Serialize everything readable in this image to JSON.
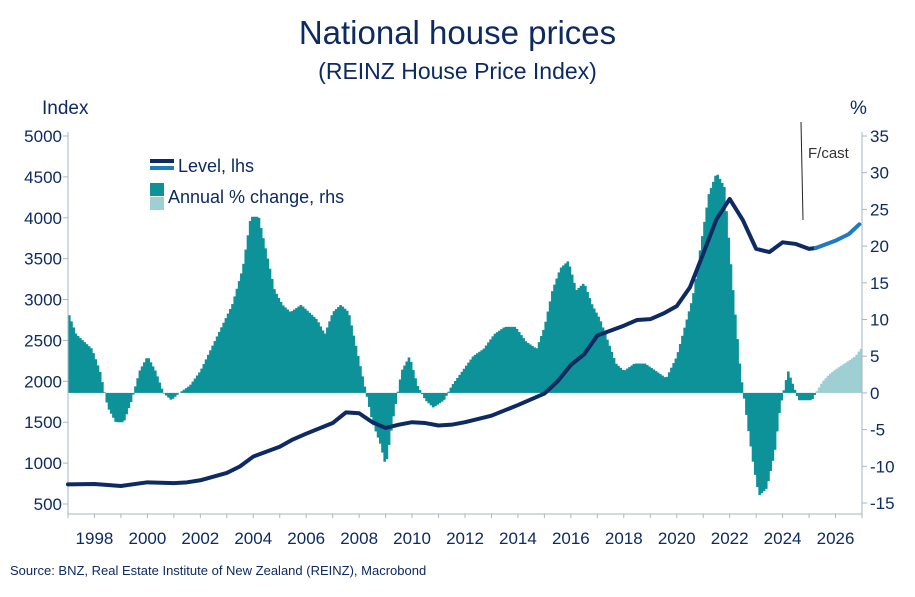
{
  "chart_data": {
    "type": "bar+line",
    "title": "National house prices",
    "subtitle": "(REINZ House Price Index)",
    "ylabel_left": "Index",
    "ylabel_right": "%",
    "ylim_left": [
      500,
      5000
    ],
    "yticks_left": [
      500,
      1000,
      1500,
      2000,
      2500,
      3000,
      3500,
      4000,
      4500,
      5000
    ],
    "ylim_right": [
      -15,
      35
    ],
    "yticks_right": [
      -15,
      -10,
      -5,
      0,
      5,
      10,
      15,
      20,
      25,
      30,
      35
    ],
    "xlim": [
      1997.0,
      2027.0
    ],
    "xticks": [
      1998,
      2000,
      2002,
      2004,
      2006,
      2008,
      2010,
      2012,
      2014,
      2016,
      2018,
      2020,
      2022,
      2024,
      2026
    ],
    "forecast_start": 2025.25,
    "forecast_label": "F/cast",
    "source": "Source: BNZ, Real Estate Institute of New Zealand (REINZ), Macrobond",
    "grid": false,
    "legend": {
      "placement": "top-left",
      "items": [
        {
          "label": "Level, lhs",
          "colors": [
            "#0d2a63",
            "#1f7bc0"
          ],
          "kind": "line"
        },
        {
          "label": "Annual % change, rhs",
          "colors": [
            "#0e9299",
            "#9ecfd3"
          ],
          "kind": "bar"
        }
      ]
    },
    "colors": {
      "level_actual": "#0d2a63",
      "level_forecast": "#1f7bc0",
      "change_actual": "#0e9299",
      "change_forecast": "#9ecfd3",
      "text": "#0d2a63",
      "axis": "#aab4c8"
    },
    "series": [
      {
        "name": "Level, lhs",
        "axis": "left",
        "points": [
          [
            1997.0,
            740
          ],
          [
            1998.0,
            745
          ],
          [
            1999.0,
            720
          ],
          [
            2000.0,
            765
          ],
          [
            2001.0,
            755
          ],
          [
            2001.5,
            765
          ],
          [
            2002.0,
            790
          ],
          [
            2003.0,
            880
          ],
          [
            2003.5,
            960
          ],
          [
            2004.0,
            1080
          ],
          [
            2005.0,
            1200
          ],
          [
            2005.5,
            1290
          ],
          [
            2006.0,
            1360
          ],
          [
            2007.0,
            1490
          ],
          [
            2007.5,
            1620
          ],
          [
            2008.0,
            1610
          ],
          [
            2008.5,
            1500
          ],
          [
            2009.0,
            1430
          ],
          [
            2009.5,
            1470
          ],
          [
            2010.0,
            1500
          ],
          [
            2010.5,
            1490
          ],
          [
            2011.0,
            1460
          ],
          [
            2011.5,
            1470
          ],
          [
            2012.0,
            1500
          ],
          [
            2013.0,
            1580
          ],
          [
            2014.0,
            1710
          ],
          [
            2015.0,
            1850
          ],
          [
            2015.5,
            2000
          ],
          [
            2016.0,
            2200
          ],
          [
            2016.5,
            2330
          ],
          [
            2017.0,
            2560
          ],
          [
            2017.5,
            2620
          ],
          [
            2018.0,
            2680
          ],
          [
            2018.5,
            2750
          ],
          [
            2019.0,
            2760
          ],
          [
            2019.5,
            2830
          ],
          [
            2020.0,
            2920
          ],
          [
            2020.5,
            3150
          ],
          [
            2021.0,
            3560
          ],
          [
            2021.5,
            3980
          ],
          [
            2022.0,
            4230
          ],
          [
            2022.5,
            3970
          ],
          [
            2023.0,
            3620
          ],
          [
            2023.5,
            3580
          ],
          [
            2024.0,
            3700
          ],
          [
            2024.5,
            3680
          ],
          [
            2025.0,
            3620
          ],
          [
            2025.25,
            3630
          ]
        ]
      },
      {
        "name": "Level, lhs (forecast)",
        "axis": "left",
        "points": [
          [
            2025.25,
            3630
          ],
          [
            2025.5,
            3660
          ],
          [
            2026.0,
            3720
          ],
          [
            2026.5,
            3800
          ],
          [
            2026.9,
            3920
          ]
        ]
      },
      {
        "name": "Annual % change, rhs",
        "axis": "right",
        "type": "bar",
        "points": [
          [
            1997.0,
            11
          ],
          [
            1997.3,
            8
          ],
          [
            1997.6,
            7
          ],
          [
            1997.9,
            6
          ],
          [
            1998.2,
            3
          ],
          [
            1998.5,
            -2
          ],
          [
            1998.8,
            -4
          ],
          [
            1999.1,
            -4
          ],
          [
            1999.4,
            -1
          ],
          [
            1999.7,
            3
          ],
          [
            2000.0,
            5
          ],
          [
            2000.3,
            3
          ],
          [
            2000.6,
            0
          ],
          [
            2000.9,
            -1
          ],
          [
            2001.2,
            0
          ],
          [
            2001.6,
            1
          ],
          [
            2002.0,
            3
          ],
          [
            2002.4,
            6
          ],
          [
            2002.8,
            9
          ],
          [
            2003.2,
            12
          ],
          [
            2003.6,
            17
          ],
          [
            2003.9,
            24
          ],
          [
            2004.2,
            24
          ],
          [
            2004.5,
            19
          ],
          [
            2004.8,
            14
          ],
          [
            2005.1,
            12
          ],
          [
            2005.4,
            11
          ],
          [
            2005.8,
            12
          ],
          [
            2006.1,
            11
          ],
          [
            2006.4,
            10
          ],
          [
            2006.7,
            8
          ],
          [
            2007.0,
            11
          ],
          [
            2007.3,
            12
          ],
          [
            2007.6,
            11
          ],
          [
            2007.9,
            6
          ],
          [
            2008.2,
            1
          ],
          [
            2008.5,
            -4
          ],
          [
            2008.8,
            -7
          ],
          [
            2009.0,
            -10
          ],
          [
            2009.3,
            -3
          ],
          [
            2009.6,
            3
          ],
          [
            2009.9,
            5
          ],
          [
            2010.2,
            1
          ],
          [
            2010.5,
            -1
          ],
          [
            2010.8,
            -2
          ],
          [
            2011.2,
            -1
          ],
          [
            2011.5,
            1
          ],
          [
            2011.9,
            3
          ],
          [
            2012.3,
            5
          ],
          [
            2012.7,
            6
          ],
          [
            2013.1,
            8
          ],
          [
            2013.5,
            9
          ],
          [
            2013.9,
            9
          ],
          [
            2014.3,
            7
          ],
          [
            2014.7,
            6
          ],
          [
            2015.0,
            9
          ],
          [
            2015.3,
            14
          ],
          [
            2015.6,
            17
          ],
          [
            2015.9,
            18
          ],
          [
            2016.2,
            14
          ],
          [
            2016.5,
            15
          ],
          [
            2016.8,
            12
          ],
          [
            2017.1,
            10
          ],
          [
            2017.4,
            7
          ],
          [
            2017.7,
            4
          ],
          [
            2018.0,
            3
          ],
          [
            2018.4,
            4
          ],
          [
            2018.8,
            4
          ],
          [
            2019.2,
            3
          ],
          [
            2019.6,
            2
          ],
          [
            2020.0,
            5
          ],
          [
            2020.3,
            9
          ],
          [
            2020.6,
            13
          ],
          [
            2020.9,
            20
          ],
          [
            2021.2,
            27
          ],
          [
            2021.5,
            30
          ],
          [
            2021.8,
            28
          ],
          [
            2022.1,
            15
          ],
          [
            2022.4,
            3
          ],
          [
            2022.7,
            -5
          ],
          [
            2022.9,
            -10
          ],
          [
            2023.1,
            -14
          ],
          [
            2023.4,
            -13
          ],
          [
            2023.7,
            -8
          ],
          [
            2023.9,
            -2
          ],
          [
            2024.2,
            3
          ],
          [
            2024.4,
            1
          ],
          [
            2024.6,
            -1
          ],
          [
            2024.8,
            -1
          ],
          [
            2025.1,
            -1
          ],
          [
            2025.25,
            0
          ]
        ]
      },
      {
        "name": "Annual % change, rhs (forecast)",
        "axis": "right",
        "type": "bar",
        "points": [
          [
            2025.25,
            0
          ],
          [
            2025.5,
            1.5
          ],
          [
            2025.75,
            2.5
          ],
          [
            2026.0,
            3.2
          ],
          [
            2026.25,
            3.8
          ],
          [
            2026.5,
            4.4
          ],
          [
            2026.75,
            5
          ],
          [
            2026.95,
            6
          ]
        ]
      }
    ]
  }
}
